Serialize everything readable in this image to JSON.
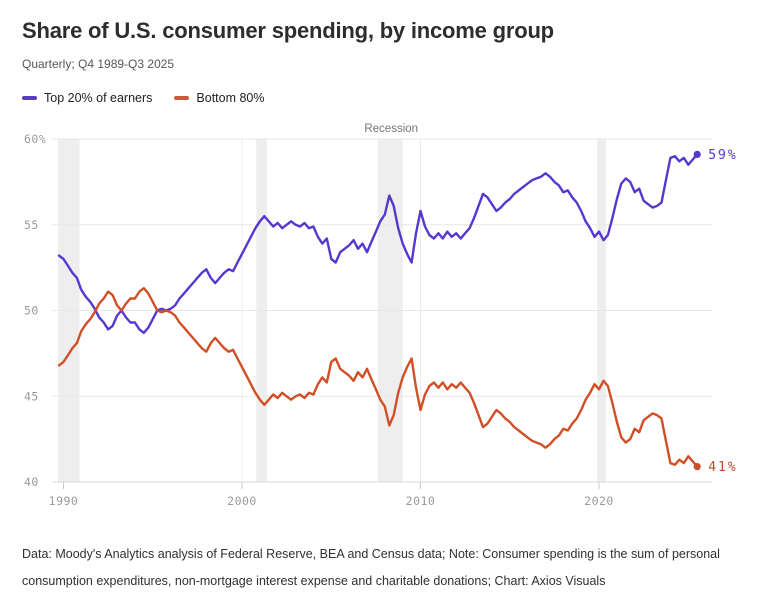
{
  "header": {
    "title": "Share of U.S. consumer spending, by income group",
    "subtitle": "Quarterly; Q4 1989-Q3 2025"
  },
  "legend": [
    {
      "label": "Top 20% of earners",
      "color": "#5a3bc6"
    },
    {
      "label": "Bottom 80%",
      "color": "#c75b3c"
    }
  ],
  "footer": {
    "text": "Data: Moody's Analytics analysis of Federal Reserve, BEA and Census data; Note: Consumer spending is the sum of personal consumption expenditures, non-mortgage interest expense and charitable donations; Chart: Axios Visuals"
  },
  "chart_data": {
    "type": "line",
    "title": "Share of U.S. consumer spending, by income group",
    "subtitle": "Quarterly; Q4 1989-Q3 2025",
    "x_start": 1989.75,
    "x_step": 0.25,
    "x_ticks": [
      1990,
      2000,
      2010,
      2020
    ],
    "x_tick_labels": [
      "1990",
      "2000",
      "2010",
      "2020"
    ],
    "y_ticks": [
      40,
      45,
      50,
      55,
      60
    ],
    "y_tick_labels": [
      "40",
      "45",
      "50",
      "55",
      "60%"
    ],
    "ylim": [
      40,
      60
    ],
    "xlim": [
      1989.75,
      2025.5
    ],
    "grid": true,
    "legend_position": "top-left",
    "recession_label": "Recession",
    "recessions": [
      [
        1989.7,
        1990.9
      ],
      [
        2000.8,
        2001.4
      ],
      [
        2007.6,
        2009.0
      ],
      [
        2019.9,
        2020.4
      ]
    ],
    "colors": {
      "recession_band": "#eeeeee",
      "gridline": "#e8e8e8",
      "axis_line": "#d9d9d9",
      "tick": "#c9c9c9",
      "axis_text": "#9a9a9a"
    },
    "series": [
      {
        "name": "Top 20% of earners",
        "color": "#5638cf",
        "label_color": "#5536d2",
        "end_label": "59%",
        "values": [
          53.2,
          53.0,
          52.6,
          52.2,
          51.9,
          51.2,
          50.8,
          50.5,
          50.1,
          49.6,
          49.3,
          48.9,
          49.1,
          49.7,
          50.0,
          49.6,
          49.3,
          49.3,
          48.9,
          48.7,
          49.0,
          49.5,
          50.0,
          50.1,
          50.0,
          50.1,
          50.3,
          50.7,
          51.0,
          51.3,
          51.6,
          51.9,
          52.2,
          52.4,
          51.9,
          51.6,
          51.9,
          52.2,
          52.4,
          52.3,
          52.8,
          53.3,
          53.8,
          54.3,
          54.8,
          55.2,
          55.5,
          55.2,
          54.9,
          55.1,
          54.8,
          55.0,
          55.2,
          55.0,
          54.9,
          55.1,
          54.8,
          54.9,
          54.3,
          53.9,
          54.2,
          53.0,
          52.8,
          53.4,
          53.6,
          53.8,
          54.1,
          53.6,
          53.9,
          53.4,
          54.0,
          54.6,
          55.2,
          55.6,
          56.7,
          56.1,
          54.8,
          53.9,
          53.3,
          52.8,
          54.5,
          55.8,
          54.9,
          54.4,
          54.2,
          54.5,
          54.2,
          54.6,
          54.3,
          54.5,
          54.2,
          54.5,
          54.8,
          55.4,
          56.1,
          56.8,
          56.6,
          56.2,
          55.8,
          56.0,
          56.3,
          56.5,
          56.8,
          57.0,
          57.2,
          57.4,
          57.6,
          57.7,
          57.8,
          58.0,
          57.8,
          57.5,
          57.3,
          56.9,
          57.0,
          56.6,
          56.3,
          55.8,
          55.2,
          54.8,
          54.3,
          54.6,
          54.1,
          54.4,
          55.4,
          56.5,
          57.4,
          57.7,
          57.5,
          56.9,
          57.1,
          56.4,
          56.2,
          56.0,
          56.1,
          56.3,
          57.6,
          58.9,
          59.0,
          58.7,
          58.9,
          58.5,
          58.8,
          59.1
        ]
      },
      {
        "name": "Bottom 80%",
        "color": "#d14f27",
        "label_color": "#c24b24",
        "end_label": "41%",
        "values": [
          46.8,
          47.0,
          47.4,
          47.8,
          48.1,
          48.8,
          49.2,
          49.5,
          49.9,
          50.4,
          50.7,
          51.1,
          50.9,
          50.3,
          50.0,
          50.4,
          50.7,
          50.7,
          51.1,
          51.3,
          51.0,
          50.5,
          50.0,
          49.9,
          50.0,
          49.9,
          49.7,
          49.3,
          49.0,
          48.7,
          48.4,
          48.1,
          47.8,
          47.6,
          48.1,
          48.4,
          48.1,
          47.8,
          47.6,
          47.7,
          47.2,
          46.7,
          46.2,
          45.7,
          45.2,
          44.8,
          44.5,
          44.8,
          45.1,
          44.9,
          45.2,
          45.0,
          44.8,
          45.0,
          45.1,
          44.9,
          45.2,
          45.1,
          45.7,
          46.1,
          45.8,
          47.0,
          47.2,
          46.6,
          46.4,
          46.2,
          45.9,
          46.4,
          46.1,
          46.6,
          46.0,
          45.4,
          44.8,
          44.4,
          43.3,
          43.9,
          45.2,
          46.1,
          46.7,
          47.2,
          45.5,
          44.2,
          45.1,
          45.6,
          45.8,
          45.5,
          45.8,
          45.4,
          45.7,
          45.5,
          45.8,
          45.5,
          45.2,
          44.6,
          43.9,
          43.2,
          43.4,
          43.8,
          44.2,
          44.0,
          43.7,
          43.5,
          43.2,
          43.0,
          42.8,
          42.6,
          42.4,
          42.3,
          42.2,
          42.0,
          42.2,
          42.5,
          42.7,
          43.1,
          43.0,
          43.4,
          43.7,
          44.2,
          44.8,
          45.2,
          45.7,
          45.4,
          45.9,
          45.6,
          44.6,
          43.5,
          42.6,
          42.3,
          42.5,
          43.1,
          42.9,
          43.6,
          43.8,
          44.0,
          43.9,
          43.7,
          42.4,
          41.1,
          41.0,
          41.3,
          41.1,
          41.5,
          41.2,
          40.9
        ]
      }
    ]
  }
}
